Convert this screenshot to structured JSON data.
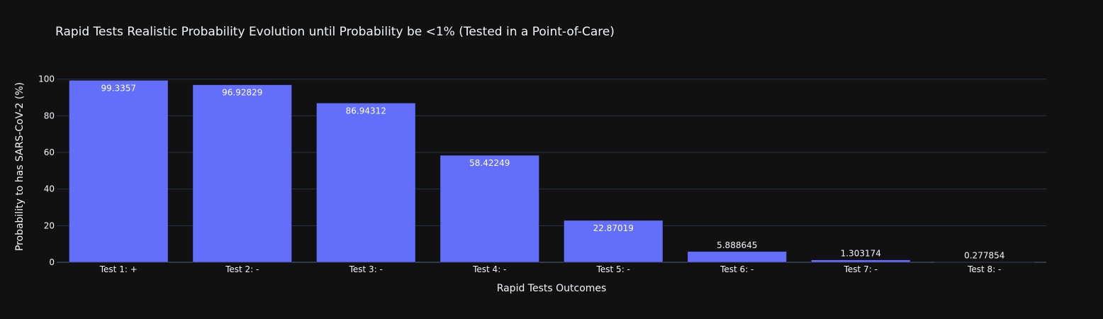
{
  "chart_data": {
    "type": "bar",
    "title": "Rapid Tests Realistic Probability Evolution until Probability be <1% (Tested in a Point-of-Care)",
    "xlabel": "Rapid Tests Outcomes",
    "ylabel": "Probability to has SARS-CoV-2 (%)",
    "categories": [
      "Test 1: +",
      "Test 2: -",
      "Test 3: -",
      "Test 4: -",
      "Test 5: -",
      "Test 6: -",
      "Test 7: -",
      "Test 8: -"
    ],
    "values": [
      99.3357,
      96.92829,
      86.94312,
      58.42249,
      22.87019,
      5.888645,
      1.303174,
      0.277854
    ],
    "data_labels": [
      "99.3357",
      "96.92829",
      "86.94312",
      "58.42249",
      "22.87019",
      "5.888645",
      "1.303174",
      "0.277854"
    ],
    "ylim": [
      0,
      104.5
    ],
    "yticks": [
      0,
      20,
      40,
      60,
      80,
      100
    ],
    "ytick_labels": [
      "0",
      "20",
      "40",
      "60",
      "80",
      "100"
    ],
    "grid": true,
    "legend": "none",
    "colors": {
      "background": "#111111",
      "bar": "#636efa",
      "grid": "#283442",
      "text": "#f2f5fa",
      "label_inside": "#ffffff"
    }
  }
}
